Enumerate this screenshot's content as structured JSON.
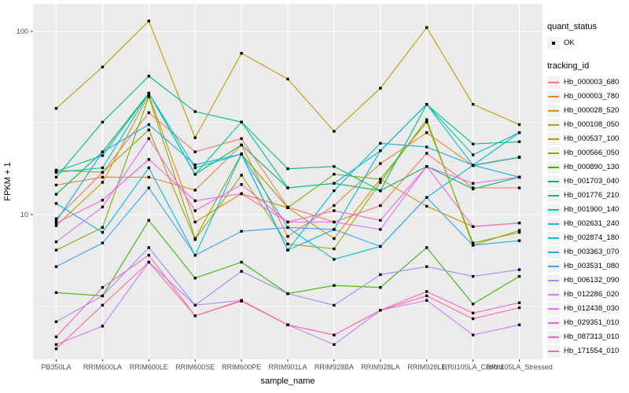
{
  "chart_data": {
    "type": "line",
    "title": "",
    "xlabel": "sample_name",
    "ylabel": "FPKM + 1",
    "y_scale": "log10",
    "y_tick_labels": [
      "100",
      "10"
    ],
    "y_tick_values": [
      100,
      10
    ],
    "y_minor_values": [
      31.62,
      3.162
    ],
    "ylim": [
      1.6,
      140
    ],
    "grid": true,
    "legend_position": "right",
    "categories": [
      "PB350LA",
      "RRIM600LA",
      "RRIM600LE",
      "RRIM600SE",
      "RRIM600PE",
      "RRIM901LA",
      "RRIM928BA",
      "RRIM928LA",
      "RRIM928LE",
      "RRII105LA_Control",
      "RRII105LA_Stressed"
    ],
    "series": [
      {
        "name": "Hb_000003_680",
        "color": "#F8766D",
        "values": [
          9.5,
          17.0,
          36.0,
          22.0,
          26.0,
          11.0,
          9.1,
          11.2,
          21.6,
          14.0,
          14.0
        ]
      },
      {
        "name": "Hb_000003_780",
        "color": "#EA8331",
        "values": [
          14.5,
          16.0,
          16.0,
          13.6,
          24.0,
          7.6,
          11.2,
          19.0,
          28.0,
          18.5,
          20.5
        ]
      },
      {
        "name": "Hb_000028_520",
        "color": "#D89000",
        "values": [
          8.7,
          15.0,
          45.0,
          9.1,
          13.0,
          10.9,
          7.4,
          15.6,
          11.1,
          8.6,
          9.0
        ]
      },
      {
        "name": "Hb_000108_050",
        "color": "#C09B00",
        "values": [
          38.0,
          64.0,
          114.0,
          26.3,
          76.0,
          55.0,
          28.5,
          49.0,
          105.0,
          40.0,
          31.0
        ]
      },
      {
        "name": "Hb_000537_100",
        "color": "#A3A500",
        "values": [
          17.5,
          17.0,
          29.0,
          7.3,
          16.4,
          6.9,
          6.5,
          15.0,
          33.0,
          6.8,
          8.2
        ]
      },
      {
        "name": "Hb_000566_050",
        "color": "#7CAE00",
        "values": [
          6.4,
          8.5,
          44.0,
          7.4,
          21.4,
          10.9,
          16.6,
          15.6,
          32.0,
          7.0,
          8.0
        ]
      },
      {
        "name": "Hb_000890_130",
        "color": "#39B600",
        "values": [
          3.75,
          3.6,
          9.3,
          4.5,
          5.5,
          3.7,
          4.1,
          4.0,
          6.6,
          3.25,
          4.6
        ]
      },
      {
        "name": "Hb_001703_040",
        "color": "#00BB4E",
        "values": [
          12.9,
          22.0,
          46.0,
          16.6,
          24.0,
          14.0,
          14.8,
          13.5,
          18.3,
          13.8,
          16.0
        ]
      },
      {
        "name": "Hb_001776_210",
        "color": "#00BF7D",
        "values": [
          16.0,
          32.0,
          57.0,
          36.5,
          32.0,
          17.8,
          18.3,
          13.5,
          40.0,
          24.3,
          25.0
        ]
      },
      {
        "name": "Hb_001900_140",
        "color": "#00C1A3",
        "values": [
          17.2,
          21.0,
          46.0,
          16.6,
          32.0,
          14.0,
          14.8,
          22.3,
          40.0,
          21.2,
          28.0
        ]
      },
      {
        "name": "Hb_002631_240",
        "color": "#00BFC4",
        "values": [
          17.0,
          18.0,
          46.0,
          18.0,
          21.4,
          8.5,
          5.7,
          6.7,
          12.4,
          18.6,
          20.6
        ]
      },
      {
        "name": "Hb_002874_180",
        "color": "#00BAE0",
        "values": [
          11.5,
          8.0,
          18.0,
          6.0,
          21.4,
          6.4,
          8.3,
          22.3,
          40.0,
          18.6,
          28.0
        ]
      },
      {
        "name": "Hb_003363_070",
        "color": "#00B0F6",
        "values": [
          9.2,
          22.0,
          31.0,
          18.7,
          21.4,
          6.4,
          13.5,
          24.5,
          23.4,
          18.6,
          16.0
        ]
      },
      {
        "name": "Hb_003531_080",
        "color": "#35A2FF",
        "values": [
          5.2,
          7.0,
          14.0,
          6.0,
          8.1,
          8.5,
          8.3,
          6.7,
          12.4,
          6.8,
          7.2
        ]
      },
      {
        "name": "Hb_006132_090",
        "color": "#9590FF",
        "values": [
          2.6,
          3.6,
          6.6,
          3.2,
          4.9,
          3.7,
          3.2,
          4.7,
          5.2,
          4.6,
          5.0
        ]
      },
      {
        "name": "Hb_012286_020",
        "color": "#C77CFF",
        "values": [
          1.95,
          2.46,
          5.5,
          3.2,
          3.4,
          2.5,
          1.95,
          3.0,
          3.4,
          2.2,
          2.5
        ]
      },
      {
        "name": "Hb_012438_030",
        "color": "#E76BF3",
        "values": [
          7.1,
          11.0,
          26.0,
          10.5,
          14.6,
          9.1,
          9.1,
          8.3,
          18.3,
          14.8,
          16.0
        ]
      },
      {
        "name": "Hb_029351_010",
        "color": "#FA62DB",
        "values": [
          9.0,
          12.0,
          20.0,
          11.9,
          13.0,
          9.1,
          10.5,
          9.3,
          18.3,
          8.6,
          9.0
        ]
      },
      {
        "name": "Hb_087313_010",
        "color": "#FF62BC",
        "values": [
          2.15,
          4.0,
          6.0,
          2.8,
          3.4,
          2.5,
          2.2,
          3.0,
          3.8,
          2.9,
          3.3
        ]
      },
      {
        "name": "Hb_171554_010",
        "color": "#FF6A98",
        "values": [
          1.85,
          3.2,
          5.5,
          2.8,
          3.37,
          2.5,
          2.2,
          3.0,
          3.6,
          2.7,
          3.1
        ]
      }
    ],
    "legends": {
      "quant_status": {
        "title": "quant_status",
        "items": [
          {
            "label": "OK",
            "symbol": "black-point"
          }
        ]
      },
      "tracking_id": {
        "title": "tracking_id"
      }
    },
    "colors": {
      "panel_bg": "#EBEBEB",
      "grid": "#FFFFFF",
      "point": "#000000",
      "tick_label": "#4D4D4D",
      "axis_title": "#000000",
      "legend_key_bg": "#F2F2F2",
      "page_bg": "#FFFFFF"
    }
  }
}
